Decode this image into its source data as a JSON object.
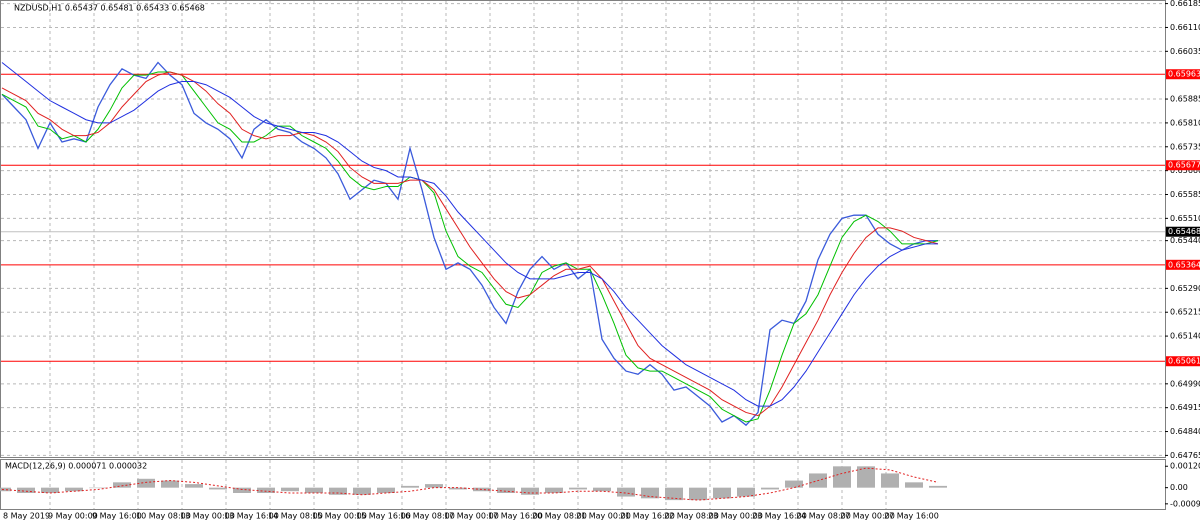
{
  "chart_data": [
    {
      "type": "line",
      "title": "NZDUSD,H1  0.65437 0.65481 0.65433 0.65468",
      "ylim": [
        0.6476,
        0.6619
      ],
      "yticks": [
        {
          "value": 0.66185,
          "label": "0.66185"
        },
        {
          "value": 0.6611,
          "label": "0.66110"
        },
        {
          "value": 0.66035,
          "label": "0.66035"
        },
        {
          "value": 0.65885,
          "label": "0.65885"
        },
        {
          "value": 0.6581,
          "label": "0.65810"
        },
        {
          "value": 0.65735,
          "label": "0.65735"
        },
        {
          "value": 0.6566,
          "label": "0.65660"
        },
        {
          "value": 0.65585,
          "label": "0.65585"
        },
        {
          "value": 0.6551,
          "label": "0.65510"
        },
        {
          "value": 0.6544,
          "label": "0.65440"
        },
        {
          "value": 0.6529,
          "label": "0.65290"
        },
        {
          "value": 0.65215,
          "label": "0.65215"
        },
        {
          "value": 0.6514,
          "label": "0.65140"
        },
        {
          "value": 0.6499,
          "label": "0.64990"
        },
        {
          "value": 0.64915,
          "label": "0.64915"
        },
        {
          "value": 0.6484,
          "label": "0.64840"
        },
        {
          "value": 0.64765,
          "label": "0.64765"
        }
      ],
      "grid": true,
      "levels": [
        0.65963,
        0.65677,
        0.65364,
        0.65061
      ],
      "level_color": "#ff0000",
      "current_price": 0.65468,
      "x_labels": [
        "8 May 2019",
        "9 May 00:00",
        "9 May 16:00",
        "10 May 08:00",
        "13 May 00:00",
        "13 May 16:00",
        "14 May 08:00",
        "15 May 00:00",
        "15 May 16:00",
        "16 May 08:00",
        "17 May 00:00",
        "17 May 16:00",
        "20 May 08:00",
        "21 May 00:00",
        "21 May 16:00",
        "22 May 08:00",
        "23 May 00:00",
        "23 May 16:00",
        "24 May 08:00",
        "27 May 00:00",
        "27 May 16:00"
      ],
      "series": [
        {
          "color": "#3b5bdb",
          "values": [
            0.659,
            0.6586,
            0.6582,
            0.6573,
            0.6581,
            0.6575,
            0.6576,
            0.6575,
            0.6586,
            0.6593,
            0.6598,
            0.6596,
            0.6595,
            0.66,
            0.6596,
            0.6593,
            0.6584,
            0.6581,
            0.6579,
            0.6576,
            0.657,
            0.6579,
            0.6582,
            0.6579,
            0.6578,
            0.6575,
            0.6573,
            0.657,
            0.6565,
            0.6557,
            0.656,
            0.6563,
            0.6562,
            0.6557,
            0.6573,
            0.656,
            0.6545,
            0.6535,
            0.6537,
            0.6535,
            0.653,
            0.6523,
            0.6518,
            0.6528,
            0.6535,
            0.6539,
            0.6535,
            0.6537,
            0.6532,
            0.6535,
            0.6513,
            0.6507,
            0.6503,
            0.6502,
            0.6505,
            0.6502,
            0.6497,
            0.6498,
            0.6495,
            0.6492,
            0.6487,
            0.6489,
            0.6486,
            0.649,
            0.6516,
            0.6519,
            0.6518,
            0.6525,
            0.6538,
            0.6546,
            0.6551,
            0.6552,
            0.6552,
            0.6546,
            0.6543,
            0.6541,
            0.6543,
            0.6544,
            0.6544
          ]
        },
        {
          "color": "#00c000",
          "values": [
            0.659,
            0.6588,
            0.6586,
            0.658,
            0.6579,
            0.6576,
            0.6577,
            0.6575,
            0.6579,
            0.6585,
            0.6592,
            0.6596,
            0.6596,
            0.6597,
            0.6597,
            0.6596,
            0.6591,
            0.6586,
            0.6581,
            0.6579,
            0.6575,
            0.6575,
            0.6577,
            0.658,
            0.658,
            0.6577,
            0.6575,
            0.6573,
            0.6569,
            0.6564,
            0.6561,
            0.656,
            0.6561,
            0.6561,
            0.6564,
            0.6563,
            0.6559,
            0.6547,
            0.6539,
            0.6536,
            0.6534,
            0.6529,
            0.6524,
            0.6523,
            0.6527,
            0.6534,
            0.6536,
            0.6537,
            0.6535,
            0.6535,
            0.6527,
            0.6518,
            0.6508,
            0.6504,
            0.6503,
            0.6503,
            0.6501,
            0.6499,
            0.6497,
            0.6495,
            0.6491,
            0.6489,
            0.6487,
            0.6488,
            0.6497,
            0.6508,
            0.6518,
            0.6521,
            0.6527,
            0.6536,
            0.6545,
            0.655,
            0.6552,
            0.655,
            0.6547,
            0.6543,
            0.6543,
            0.6543,
            0.6544
          ]
        },
        {
          "color": "#e02020",
          "values": [
            0.6592,
            0.659,
            0.6588,
            0.6584,
            0.6582,
            0.6579,
            0.6577,
            0.6577,
            0.6578,
            0.6581,
            0.6586,
            0.659,
            0.6594,
            0.6596,
            0.6597,
            0.6596,
            0.6594,
            0.6591,
            0.6587,
            0.6584,
            0.6579,
            0.6577,
            0.6576,
            0.6577,
            0.6577,
            0.6578,
            0.6577,
            0.6575,
            0.6572,
            0.6567,
            0.6564,
            0.6562,
            0.6562,
            0.6562,
            0.6563,
            0.6563,
            0.656,
            0.6554,
            0.6548,
            0.6542,
            0.6537,
            0.6532,
            0.6528,
            0.6526,
            0.6527,
            0.653,
            0.6533,
            0.6535,
            0.6535,
            0.6536,
            0.6532,
            0.6525,
            0.6518,
            0.6511,
            0.6507,
            0.6505,
            0.6503,
            0.6501,
            0.6499,
            0.6497,
            0.6494,
            0.6492,
            0.649,
            0.6489,
            0.6492,
            0.6498,
            0.6505,
            0.6512,
            0.6519,
            0.6527,
            0.6534,
            0.654,
            0.6545,
            0.6548,
            0.6548,
            0.6547,
            0.6545,
            0.6544,
            0.6543
          ]
        },
        {
          "color": "#2030e0",
          "values": [
            0.66,
            0.6597,
            0.6594,
            0.6591,
            0.6588,
            0.6586,
            0.6584,
            0.6582,
            0.6581,
            0.6581,
            0.6583,
            0.6585,
            0.6588,
            0.6591,
            0.6593,
            0.6594,
            0.6594,
            0.6593,
            0.6591,
            0.6589,
            0.6586,
            0.6583,
            0.6581,
            0.658,
            0.6579,
            0.6578,
            0.6578,
            0.6577,
            0.6575,
            0.6572,
            0.6569,
            0.6567,
            0.6566,
            0.6564,
            0.6564,
            0.6563,
            0.6562,
            0.6558,
            0.6553,
            0.6549,
            0.6545,
            0.6541,
            0.6537,
            0.6534,
            0.6532,
            0.6532,
            0.6532,
            0.6533,
            0.6534,
            0.6534,
            0.6532,
            0.6528,
            0.6523,
            0.6519,
            0.6515,
            0.6511,
            0.6508,
            0.6505,
            0.6503,
            0.6501,
            0.6499,
            0.6497,
            0.6494,
            0.6492,
            0.6492,
            0.6494,
            0.6498,
            0.6503,
            0.6509,
            0.6515,
            0.6521,
            0.6527,
            0.6532,
            0.6536,
            0.6539,
            0.6541,
            0.6542,
            0.6543,
            0.6543
          ]
        }
      ]
    },
    {
      "type": "macd",
      "title": "MACD(12,26,9) 0.000071 0.000032",
      "ylim": [
        -0.0012,
        0.0015
      ],
      "yticks": [
        0.001205,
        {
          "value": 0,
          "label": "0.00"
        },
        -0.00091
      ],
      "hist_color": "#b0b0b0",
      "signal_color": "#e02020",
      "values": [
        -0.0002,
        -0.0003,
        -0.0003,
        -0.0002,
        0,
        0.0003,
        0.0005,
        0.0004,
        0.0002,
        -0.0001,
        -0.0003,
        -0.0003,
        -0.0002,
        -0.0003,
        -0.0004,
        -0.0004,
        -0.0003,
        0.0001,
        0.0002,
        -0.0001,
        -0.0002,
        -0.0003,
        -0.0004,
        -0.0003,
        -0.0001,
        -0.0002,
        -0.0005,
        -0.0006,
        -0.0007,
        -0.0007,
        -0.0006,
        -0.0005,
        -0.0001,
        0.0004,
        0.0008,
        0.0012,
        0.0012,
        0.0008,
        0.0003,
        0.0001
      ],
      "signal": [
        -0.0001,
        -0.0002,
        -0.0003,
        -0.0002,
        -0.0001,
        0.0001,
        0.0003,
        0.0004,
        0.0003,
        0.0001,
        -0.0001,
        -0.0002,
        -0.0003,
        -0.0003,
        -0.0003,
        -0.0004,
        -0.0003,
        -0.0002,
        0,
        0,
        -0.0001,
        -0.0002,
        -0.0003,
        -0.0003,
        -0.0002,
        -0.0002,
        -0.0003,
        -0.0005,
        -0.0006,
        -0.0007,
        -0.0006,
        -0.0005,
        -0.0003,
        0,
        0.0004,
        0.0008,
        0.0011,
        0.001,
        0.0006,
        0.0003
      ]
    }
  ]
}
